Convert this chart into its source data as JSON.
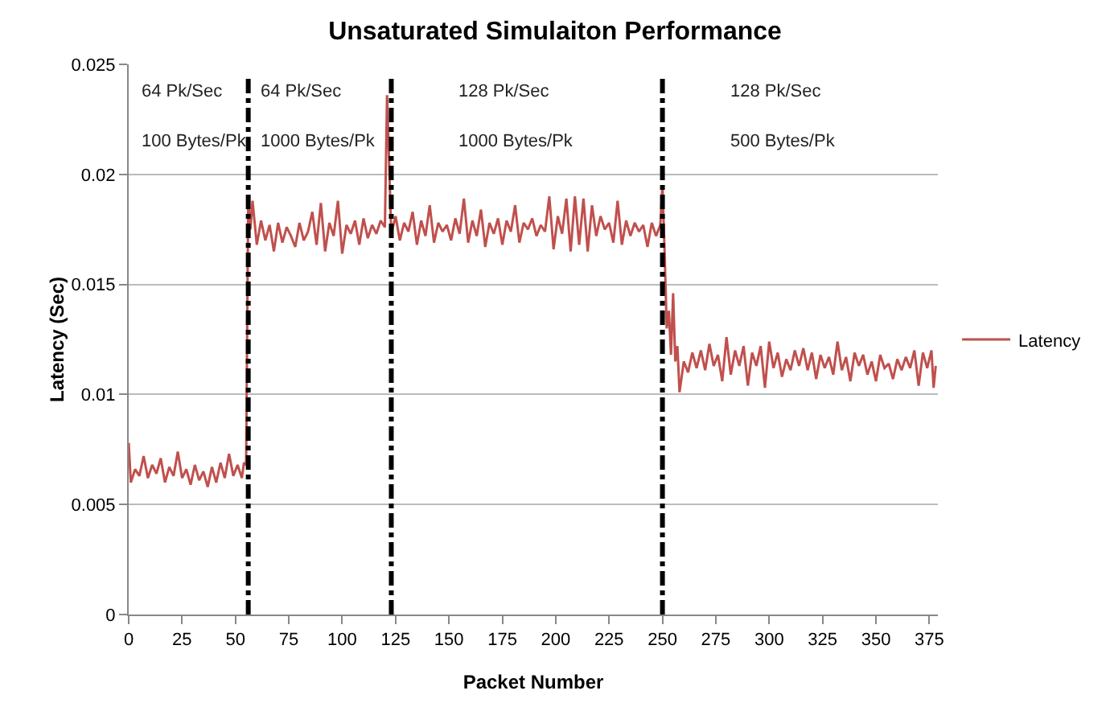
{
  "chart_data": {
    "type": "line",
    "title": "Unsaturated Simulaiton Performance",
    "xlabel": "Packet Number",
    "ylabel": "Latency (Sec)",
    "x": [
      0,
      1,
      3,
      5,
      7,
      9,
      11,
      13,
      15,
      17,
      19,
      21,
      23,
      25,
      27,
      29,
      31,
      33,
      35,
      37,
      39,
      41,
      43,
      45,
      47,
      49,
      51,
      53,
      54,
      55,
      56,
      57,
      58,
      60,
      62,
      64,
      66,
      68,
      70,
      72,
      74,
      76,
      78,
      80,
      82,
      84,
      86,
      88,
      90,
      92,
      94,
      96,
      98,
      100,
      102,
      104,
      106,
      108,
      110,
      112,
      114,
      116,
      118,
      120,
      121,
      123,
      125,
      127,
      129,
      131,
      133,
      135,
      137,
      139,
      141,
      143,
      145,
      147,
      149,
      151,
      153,
      155,
      157,
      159,
      161,
      163,
      165,
      167,
      169,
      171,
      173,
      175,
      177,
      179,
      181,
      183,
      185,
      187,
      189,
      191,
      193,
      195,
      197,
      199,
      201,
      203,
      205,
      207,
      209,
      211,
      213,
      215,
      217,
      219,
      221,
      223,
      225,
      227,
      229,
      231,
      233,
      235,
      237,
      239,
      241,
      243,
      245,
      247,
      249,
      250,
      251,
      252,
      253,
      254,
      255,
      256,
      257,
      258,
      260,
      262,
      264,
      266,
      268,
      270,
      272,
      274,
      276,
      278,
      280,
      282,
      284,
      286,
      288,
      290,
      292,
      294,
      296,
      298,
      300,
      302,
      304,
      306,
      308,
      310,
      312,
      314,
      316,
      318,
      320,
      322,
      324,
      326,
      328,
      330,
      332,
      334,
      336,
      338,
      340,
      342,
      344,
      346,
      348,
      350,
      352,
      354,
      356,
      358,
      360,
      362,
      364,
      366,
      368,
      370,
      372,
      374,
      376,
      377,
      378
    ],
    "series": [
      {
        "name": "Latency",
        "color": "#c0504d",
        "values": [
          0.0078,
          0.006,
          0.0066,
          0.0063,
          0.0072,
          0.0062,
          0.0068,
          0.0064,
          0.0071,
          0.006,
          0.0067,
          0.0063,
          0.0074,
          0.0062,
          0.0066,
          0.0059,
          0.0068,
          0.0061,
          0.0065,
          0.0058,
          0.0067,
          0.006,
          0.0069,
          0.0062,
          0.0073,
          0.0063,
          0.0068,
          0.0062,
          0.0069,
          0.0068,
          0.019,
          0.0175,
          0.0188,
          0.0168,
          0.0179,
          0.017,
          0.0177,
          0.0165,
          0.0178,
          0.0169,
          0.0176,
          0.0172,
          0.0167,
          0.0178,
          0.017,
          0.0174,
          0.0183,
          0.0168,
          0.0187,
          0.0165,
          0.0178,
          0.0172,
          0.0188,
          0.0164,
          0.0177,
          0.0173,
          0.0179,
          0.0168,
          0.018,
          0.0171,
          0.0177,
          0.0173,
          0.0179,
          0.0176,
          0.0236,
          0.0173,
          0.0181,
          0.017,
          0.0178,
          0.0174,
          0.0183,
          0.0168,
          0.0179,
          0.0172,
          0.0186,
          0.0169,
          0.0178,
          0.0174,
          0.0177,
          0.017,
          0.018,
          0.0173,
          0.0189,
          0.0169,
          0.0179,
          0.0172,
          0.0184,
          0.0167,
          0.0178,
          0.0173,
          0.018,
          0.0168,
          0.0179,
          0.0174,
          0.0186,
          0.0169,
          0.0178,
          0.0175,
          0.018,
          0.0172,
          0.0177,
          0.0174,
          0.019,
          0.0166,
          0.0181,
          0.0173,
          0.0189,
          0.0165,
          0.019,
          0.0168,
          0.0189,
          0.0165,
          0.0186,
          0.0172,
          0.0181,
          0.0175,
          0.0178,
          0.0169,
          0.0188,
          0.0168,
          0.0179,
          0.0172,
          0.0178,
          0.0174,
          0.0177,
          0.0167,
          0.0178,
          0.0172,
          0.0177,
          0.0195,
          0.0165,
          0.013,
          0.0138,
          0.0118,
          0.0146,
          0.0115,
          0.0122,
          0.0101,
          0.0115,
          0.011,
          0.0119,
          0.0112,
          0.012,
          0.0111,
          0.0123,
          0.0113,
          0.0118,
          0.0106,
          0.0126,
          0.0109,
          0.012,
          0.0113,
          0.0122,
          0.0104,
          0.0119,
          0.0113,
          0.0122,
          0.0103,
          0.0124,
          0.0112,
          0.0119,
          0.0108,
          0.0116,
          0.0111,
          0.012,
          0.0113,
          0.0121,
          0.0111,
          0.0119,
          0.0107,
          0.0118,
          0.0112,
          0.0117,
          0.0109,
          0.0124,
          0.0111,
          0.0117,
          0.0106,
          0.0119,
          0.0113,
          0.0118,
          0.0109,
          0.0115,
          0.0106,
          0.0118,
          0.0112,
          0.0114,
          0.0107,
          0.0116,
          0.0111,
          0.0117,
          0.0112,
          0.012,
          0.0104,
          0.0119,
          0.0112,
          0.012,
          0.0103,
          0.0113
        ]
      }
    ],
    "xlim": [
      0,
      379
    ],
    "xticks": [
      0,
      25,
      50,
      75,
      100,
      125,
      150,
      175,
      200,
      225,
      250,
      275,
      300,
      325,
      350,
      375
    ],
    "ylim": [
      0,
      0.025
    ],
    "yticks": [
      0,
      0.005,
      0.01,
      0.015,
      0.02,
      0.025
    ],
    "grid": "y",
    "legend": "right",
    "marker": "none",
    "line_style": "solid",
    "ref_lines": [
      {
        "axis": "x",
        "value": 56,
        "color": "#000000",
        "line_style": "dashdot"
      },
      {
        "axis": "x",
        "value": 123,
        "color": "#000000",
        "line_style": "dashdot"
      },
      {
        "axis": "x",
        "value": 250,
        "color": "#000000",
        "line_style": "dashdot"
      }
    ],
    "annotations": [
      "64 Pk/Sec",
      "100 Bytes/Pk",
      "64 Pk/Sec",
      "1000 Bytes/Pk",
      "128 Pk/Sec",
      "1000 Bytes/Pk",
      "128 Pk/Sec",
      "500 Bytes/Pk"
    ]
  }
}
